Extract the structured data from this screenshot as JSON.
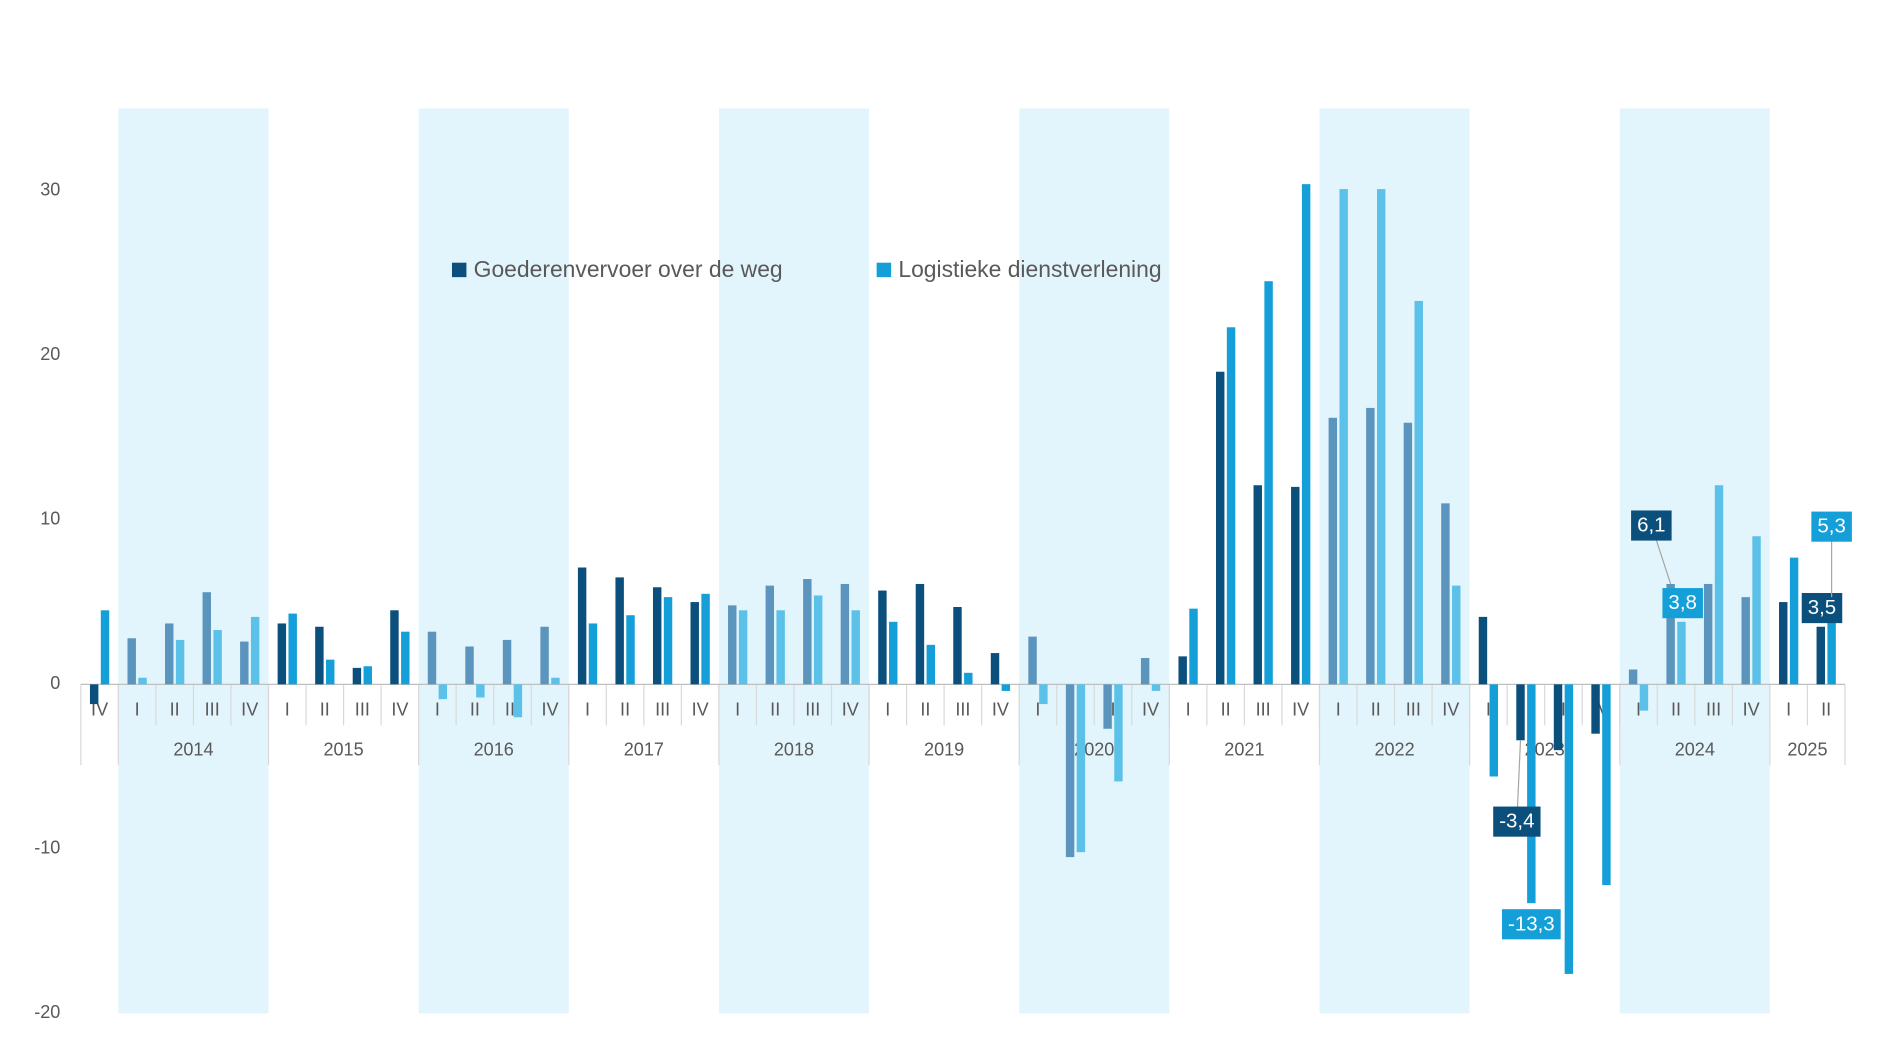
{
  "chart_data": {
    "type": "bar",
    "categories": [
      "IV",
      "I",
      "II",
      "III",
      "IV",
      "I",
      "II",
      "III",
      "IV",
      "I",
      "II",
      "III",
      "IV",
      "I",
      "II",
      "III",
      "IV",
      "I",
      "II",
      "III",
      "IV",
      "I",
      "II",
      "III",
      "IV",
      "I",
      "II",
      "III",
      "IV",
      "I",
      "II",
      "III",
      "IV",
      "I",
      "II",
      "III",
      "IV",
      "I",
      "II",
      "III",
      "IV",
      "I",
      "II",
      "III",
      "IV",
      "I",
      "II"
    ],
    "groups": [
      {
        "label": null,
        "size": 1,
        "shaded": false
      },
      {
        "label": "2014",
        "size": 4,
        "shaded": true
      },
      {
        "label": "2015",
        "size": 4,
        "shaded": false
      },
      {
        "label": "2016",
        "size": 4,
        "shaded": true
      },
      {
        "label": "2017",
        "size": 4,
        "shaded": false
      },
      {
        "label": "2018",
        "size": 4,
        "shaded": true
      },
      {
        "label": "2019",
        "size": 4,
        "shaded": false
      },
      {
        "label": "2020",
        "size": 4,
        "shaded": true
      },
      {
        "label": "2021",
        "size": 4,
        "shaded": false
      },
      {
        "label": "2022",
        "size": 4,
        "shaded": true
      },
      {
        "label": "2023",
        "size": 4,
        "shaded": false
      },
      {
        "label": "2024",
        "size": 4,
        "shaded": true
      },
      {
        "label": "2025",
        "size": 2,
        "shaded": false
      }
    ],
    "series": [
      {
        "name": "Goederenvervoer over de weg",
        "color": "#0b4f7c",
        "shaded_color": "#5b95bd",
        "values": [
          -1.2,
          2.8,
          3.7,
          5.6,
          2.6,
          3.7,
          3.5,
          1.0,
          4.5,
          3.2,
          2.3,
          2.7,
          3.5,
          7.1,
          6.5,
          5.9,
          5.0,
          4.8,
          6.0,
          6.4,
          6.1,
          5.7,
          6.1,
          4.7,
          1.9,
          2.9,
          -10.5,
          -2.7,
          1.6,
          1.7,
          19.0,
          12.1,
          12.0,
          16.2,
          16.8,
          15.9,
          11.0,
          4.1,
          -3.4,
          -4.0,
          -3.0,
          0.9,
          6.1,
          6.1,
          5.3,
          5.0,
          3.5
        ],
        "value_labels": [
          null,
          null,
          null,
          null,
          null,
          null,
          null,
          null,
          null,
          null,
          null,
          null,
          null,
          null,
          null,
          null,
          null,
          null,
          null,
          null,
          null,
          null,
          null,
          null,
          null,
          null,
          null,
          null,
          null,
          null,
          null,
          null,
          null,
          null,
          null,
          null,
          null,
          null,
          "-3,4",
          null,
          null,
          null,
          "6,1",
          null,
          null,
          null,
          "3,5"
        ]
      },
      {
        "name": "Logistieke dienstverlening",
        "color": "#149fd9",
        "shaded_color": "#5cc1e9",
        "values": [
          4.5,
          0.4,
          2.7,
          3.3,
          4.1,
          4.3,
          1.5,
          1.1,
          3.2,
          -0.9,
          -0.8,
          -2.0,
          0.4,
          3.7,
          4.2,
          5.3,
          5.5,
          4.5,
          4.5,
          5.4,
          4.5,
          3.8,
          2.4,
          0.7,
          -0.4,
          -1.2,
          -10.2,
          -5.9,
          -0.4,
          4.6,
          21.7,
          24.5,
          30.4,
          30.1,
          30.1,
          23.3,
          6.0,
          -5.6,
          -13.3,
          -17.6,
          -12.2,
          -1.6,
          3.8,
          12.1,
          9.0,
          7.7,
          5.3
        ],
        "value_labels": [
          null,
          null,
          null,
          null,
          null,
          null,
          null,
          null,
          null,
          null,
          null,
          null,
          null,
          null,
          null,
          null,
          null,
          null,
          null,
          null,
          null,
          null,
          null,
          null,
          null,
          null,
          null,
          null,
          null,
          null,
          null,
          null,
          null,
          null,
          null,
          null,
          null,
          null,
          "-13,3",
          null,
          null,
          null,
          "3,8",
          null,
          null,
          null,
          "5,3"
        ]
      }
    ],
    "ylim": [
      -20,
      35
    ],
    "yticks": [
      -20,
      -10,
      0,
      10,
      20,
      30
    ],
    "band_color": "#e3f5fc",
    "grid": false
  }
}
